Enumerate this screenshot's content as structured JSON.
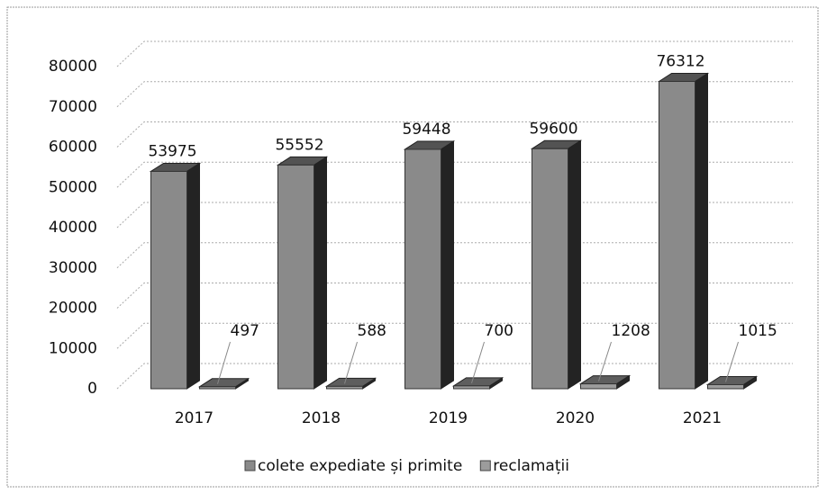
{
  "chart_data": {
    "type": "bar",
    "categories": [
      "2017",
      "2018",
      "2019",
      "2020",
      "2021"
    ],
    "series": [
      {
        "name": "colete expediate și primite",
        "color": "#8a8a8a",
        "values": [
          53975,
          55552,
          59448,
          59600,
          76312
        ]
      },
      {
        "name": "reclamații",
        "color": "#9c9c9c",
        "values": [
          497,
          588,
          700,
          1208,
          1015
        ]
      }
    ],
    "ylim": [
      0,
      80000
    ],
    "yticks": [
      0,
      10000,
      20000,
      30000,
      40000,
      50000,
      60000,
      70000,
      80000
    ],
    "grid": true,
    "legend": "bottom"
  }
}
